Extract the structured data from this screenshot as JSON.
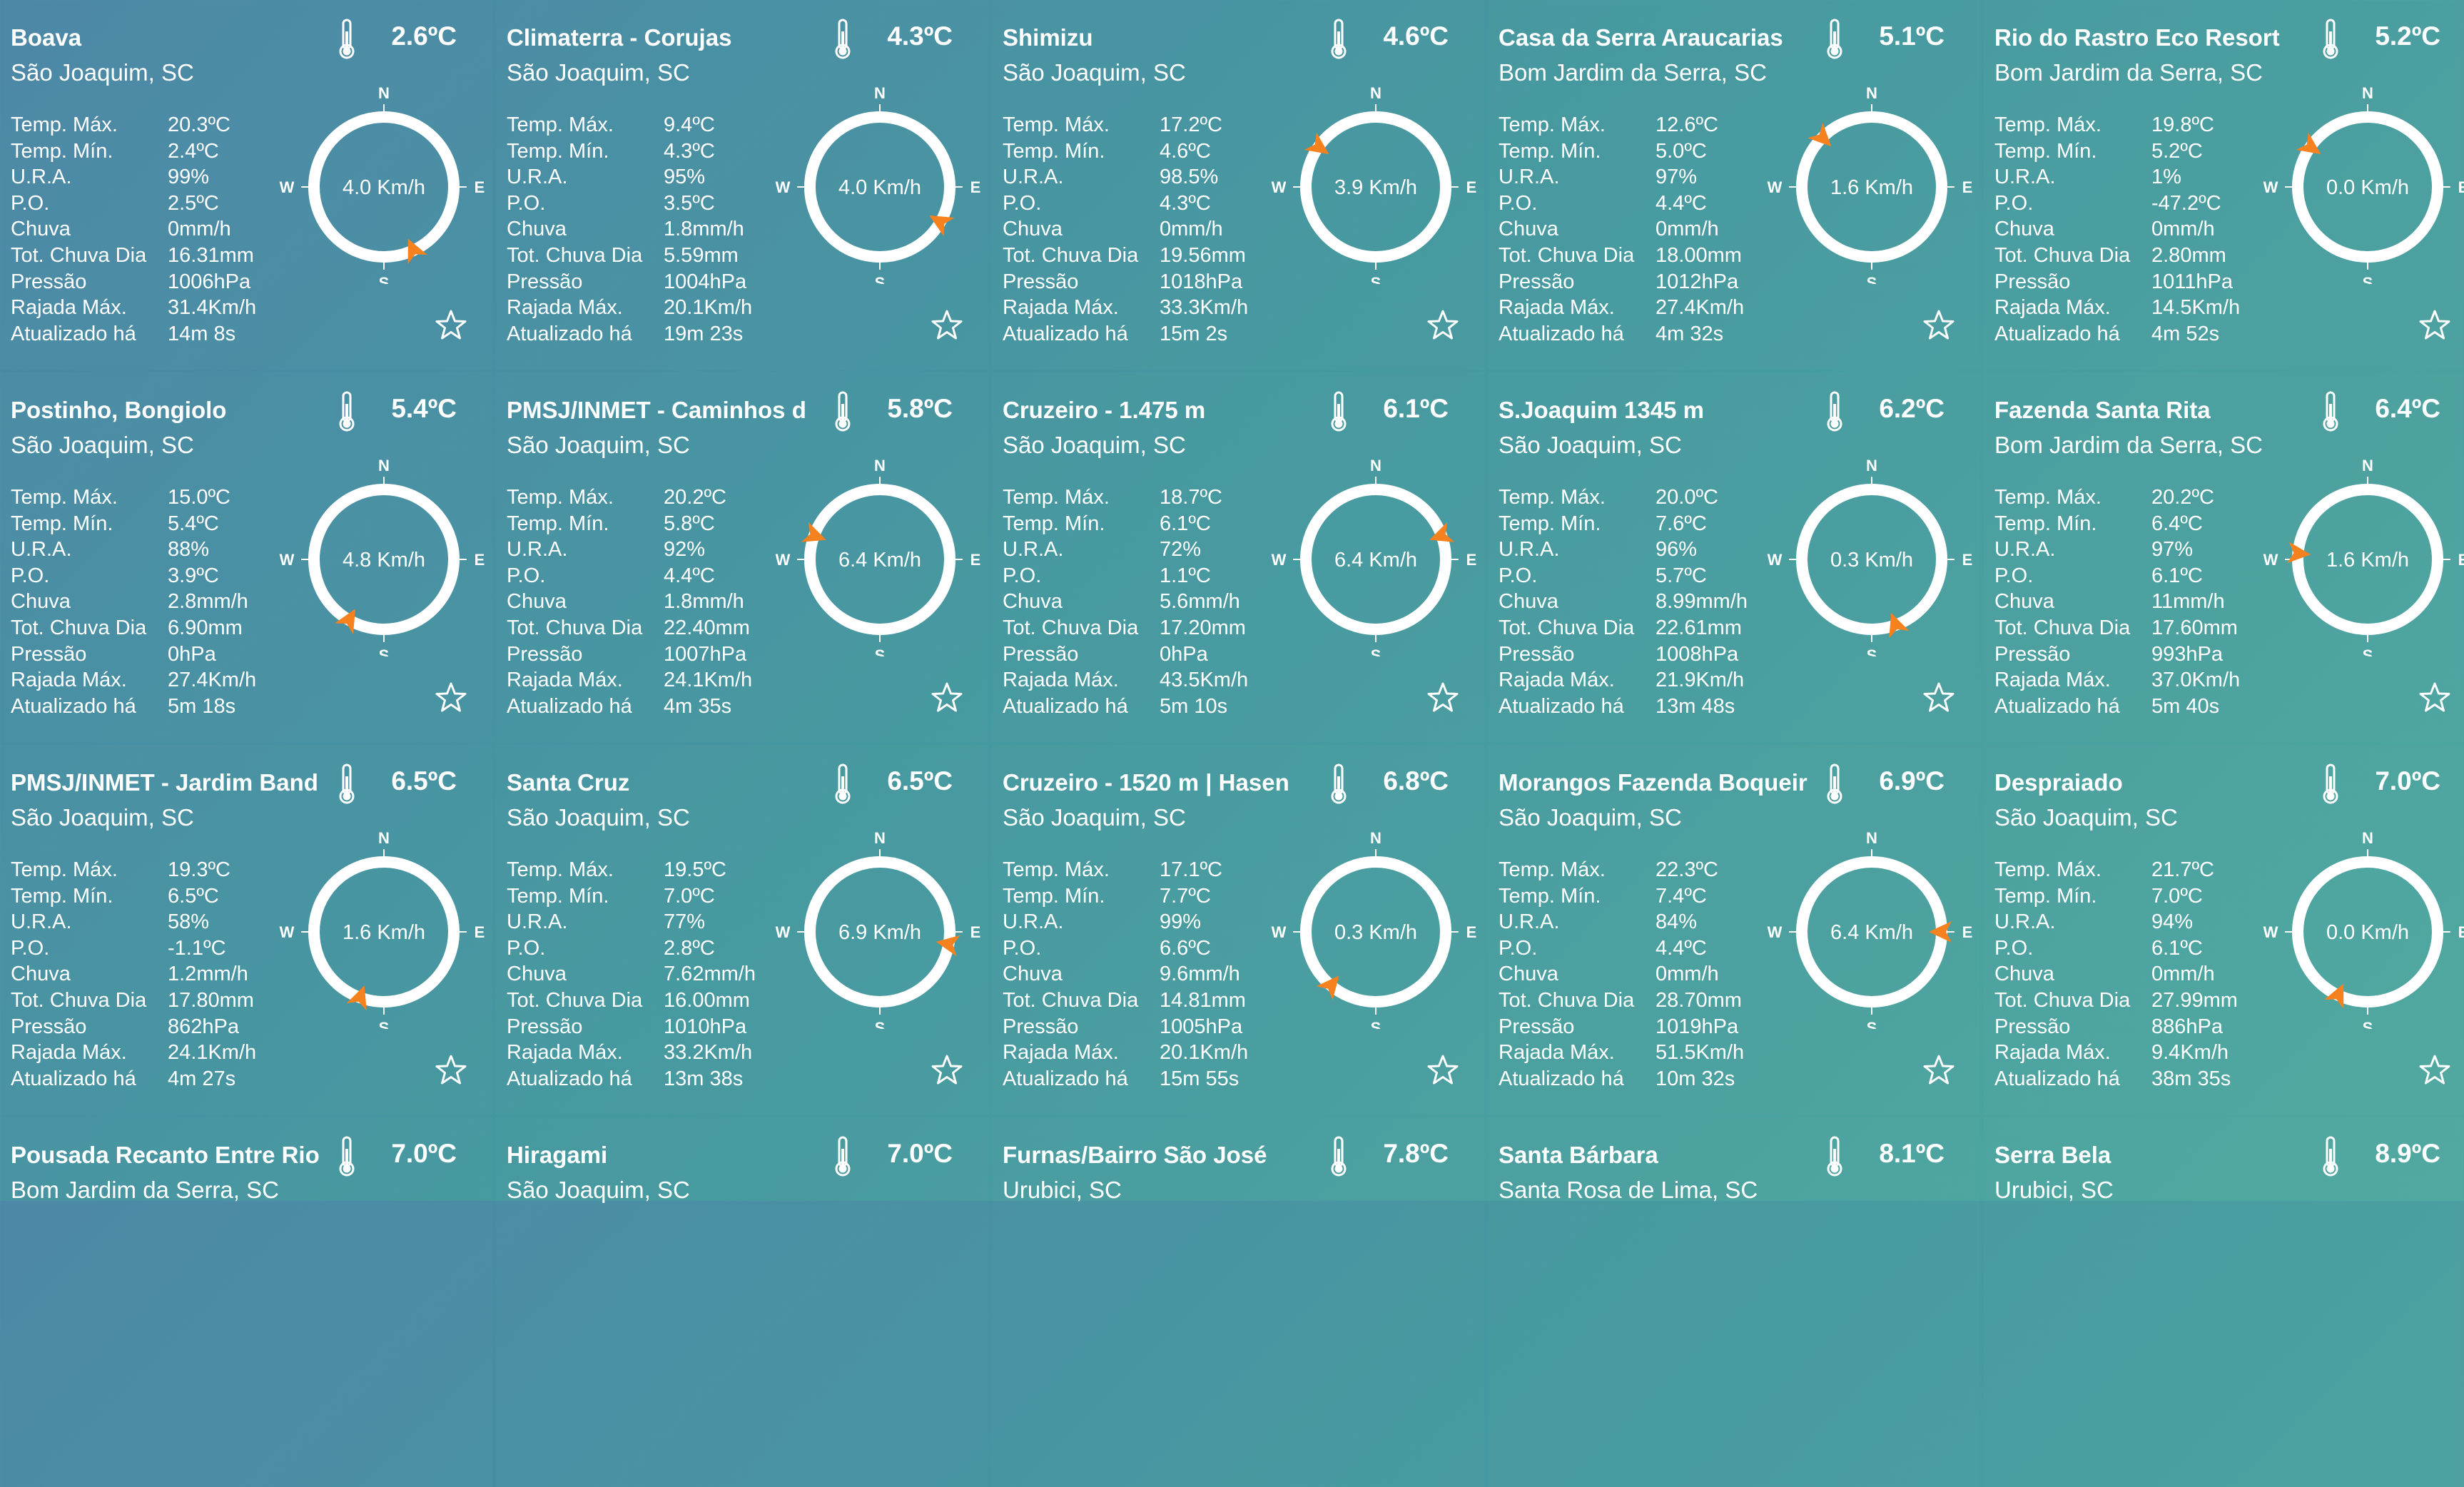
{
  "labels": {
    "tmax": "Temp. Máx.",
    "tmin": "Temp. Mín.",
    "ura": "U.R.A.",
    "po": "P.O.",
    "chuva": "Chuva",
    "totchuva": "Tot. Chuva Dia",
    "pressao": "Pressão",
    "rajada": "Rajada Máx.",
    "atualizado": "Atualizado há"
  },
  "compass_labels": {
    "n": "N",
    "s": "S",
    "e": "E",
    "w": "W"
  },
  "colors": {
    "arrow": "#f5821f",
    "ring": "#ffffff"
  },
  "icons": {
    "thermometer": "thermometer-icon",
    "favorite": "star-outline-icon"
  },
  "stations": [
    {
      "name": "Boava",
      "city": "São Joaquim, SC",
      "temp": "2.6ºC",
      "tmax": "20.3ºC",
      "tmin": "2.4ºC",
      "ura": "99%",
      "po": "2.5ºC",
      "chuva": "0mm/h",
      "totchuva": "16.31mm",
      "pressao": "1006hPa",
      "rajada": "31.4Km/h",
      "atualizado": "14m 8s",
      "wind": "4.0 Km/h",
      "wind_dir_deg": 155
    },
    {
      "name": "Climaterra - Corujas",
      "city": "São Joaquim, SC",
      "temp": "4.3ºC",
      "tmax": "9.4ºC",
      "tmin": "4.3ºC",
      "ura": "95%",
      "po": "3.5ºC",
      "chuva": "1.8mm/h",
      "totchuva": "5.59mm",
      "pressao": "1004hPa",
      "rajada": "20.1Km/h",
      "atualizado": "19m 23s",
      "wind": "4.0 Km/h",
      "wind_dir_deg": 120
    },
    {
      "name": "Shimizu",
      "city": "São Joaquim, SC",
      "temp": "4.6ºC",
      "tmax": "17.2ºC",
      "tmin": "4.6ºC",
      "ura": "98.5%",
      "po": "4.3ºC",
      "chuva": "0mm/h",
      "totchuva": "19.56mm",
      "pressao": "1018hPa",
      "rajada": "33.3Km/h",
      "atualizado": "15m 2s",
      "wind": "3.9 Km/h",
      "wind_dir_deg": 305
    },
    {
      "name": "Casa da Serra Araucarias",
      "city": "Bom Jardim da Serra, SC",
      "temp": "5.1ºC",
      "tmax": "12.6ºC",
      "tmin": "5.0ºC",
      "ura": "97%",
      "po": "4.4ºC",
      "chuva": "0mm/h",
      "totchuva": "18.00mm",
      "pressao": "1012hPa",
      "rajada": "27.4Km/h",
      "atualizado": "4m 32s",
      "wind": "1.6 Km/h",
      "wind_dir_deg": 315
    },
    {
      "name": "Rio do Rastro Eco Resort",
      "city": "Bom Jardim da Serra, SC",
      "temp": "5.2ºC",
      "tmax": "19.8ºC",
      "tmin": "5.2ºC",
      "ura": "1%",
      "po": "-47.2ºC",
      "chuva": "0mm/h",
      "totchuva": "2.80mm",
      "pressao": "1011hPa",
      "rajada": "14.5Km/h",
      "atualizado": "4m 52s",
      "wind": "0.0 Km/h",
      "wind_dir_deg": 305
    },
    {
      "name": "Postinho, Bongiolo",
      "city": "São Joaquim, SC",
      "temp": "5.4ºC",
      "tmax": "15.0ºC",
      "tmin": "5.4ºC",
      "ura": "88%",
      "po": "3.9ºC",
      "chuva": "2.8mm/h",
      "totchuva": "6.90mm",
      "pressao": "0hPa",
      "rajada": "27.4Km/h",
      "atualizado": "5m 18s",
      "wind": "4.8 Km/h",
      "wind_dir_deg": 210
    },
    {
      "name": "PMSJ/INMET - Caminhos d",
      "city": "São Joaquim, SC",
      "temp": "5.8ºC",
      "tmax": "20.2ºC",
      "tmin": "5.8ºC",
      "ura": "92%",
      "po": "4.4ºC",
      "chuva": "1.8mm/h",
      "totchuva": "22.40mm",
      "pressao": "1007hPa",
      "rajada": "24.1Km/h",
      "atualizado": "4m 35s",
      "wind": "6.4 Km/h",
      "wind_dir_deg": 290
    },
    {
      "name": "Cruzeiro - 1.475 m",
      "city": "São Joaquim, SC",
      "temp": "6.1ºC",
      "tmax": "18.7ºC",
      "tmin": "6.1ºC",
      "ura": "72%",
      "po": "1.1ºC",
      "chuva": "5.6mm/h",
      "totchuva": "17.20mm",
      "pressao": "0hPa",
      "rajada": "43.5Km/h",
      "atualizado": "5m 10s",
      "wind": "6.4 Km/h",
      "wind_dir_deg": 70
    },
    {
      "name": "S.Joaquim 1345 m",
      "city": "São Joaquim, SC",
      "temp": "6.2ºC",
      "tmax": "20.0ºC",
      "tmin": "7.6ºC",
      "ura": "96%",
      "po": "5.7ºC",
      "chuva": "8.99mm/h",
      "totchuva": "22.61mm",
      "pressao": "1008hPa",
      "rajada": "21.9Km/h",
      "atualizado": "13m 48s",
      "wind": "0.3 Km/h",
      "wind_dir_deg": 160
    },
    {
      "name": "Fazenda Santa Rita",
      "city": "Bom Jardim da Serra, SC",
      "temp": "6.4ºC",
      "tmax": "20.2ºC",
      "tmin": "6.4ºC",
      "ura": "97%",
      "po": "6.1ºC",
      "chuva": "11mm/h",
      "totchuva": "17.60mm",
      "pressao": "993hPa",
      "rajada": "37.0Km/h",
      "atualizado": "5m 40s",
      "wind": "1.6 Km/h",
      "wind_dir_deg": 275
    },
    {
      "name": "PMSJ/INMET - Jardim Band",
      "city": "São Joaquim, SC",
      "temp": "6.5ºC",
      "tmax": "19.3ºC",
      "tmin": "6.5ºC",
      "ura": "58%",
      "po": "-1.1ºC",
      "chuva": "1.2mm/h",
      "totchuva": "17.80mm",
      "pressao": "862hPa",
      "rajada": "24.1Km/h",
      "atualizado": "4m 27s",
      "wind": "1.6 Km/h",
      "wind_dir_deg": 200
    },
    {
      "name": "Santa Cruz",
      "city": "São Joaquim, SC",
      "temp": "6.5ºC",
      "tmax": "19.5ºC",
      "tmin": "7.0ºC",
      "ura": "77%",
      "po": "2.8ºC",
      "chuva": "7.62mm/h",
      "totchuva": "16.00mm",
      "pressao": "1010hPa",
      "rajada": "33.2Km/h",
      "atualizado": "13m 38s",
      "wind": "6.9 Km/h",
      "wind_dir_deg": 100
    },
    {
      "name": "Cruzeiro - 1520 m | Hasen",
      "city": "São Joaquim, SC",
      "temp": "6.8ºC",
      "tmax": "17.1ºC",
      "tmin": "7.7ºC",
      "ura": "99%",
      "po": "6.6ºC",
      "chuva": "9.6mm/h",
      "totchuva": "14.81mm",
      "pressao": "1005hPa",
      "rajada": "20.1Km/h",
      "atualizado": "15m 55s",
      "wind": "0.3 Km/h",
      "wind_dir_deg": 220
    },
    {
      "name": "Morangos Fazenda Boqueir",
      "city": "São Joaquim, SC",
      "temp": "6.9ºC",
      "tmax": "22.3ºC",
      "tmin": "7.4ºC",
      "ura": "84%",
      "po": "4.4ºC",
      "chuva": "0mm/h",
      "totchuva": "28.70mm",
      "pressao": "1019hPa",
      "rajada": "51.5Km/h",
      "atualizado": "10m 32s",
      "wind": "6.4 Km/h",
      "wind_dir_deg": 90
    },
    {
      "name": "Despraiado",
      "city": "São Joaquim, SC",
      "temp": "7.0ºC",
      "tmax": "21.7ºC",
      "tmin": "7.0ºC",
      "ura": "94%",
      "po": "6.1ºC",
      "chuva": "0mm/h",
      "totchuva": "27.99mm",
      "pressao": "886hPa",
      "rajada": "9.4Km/h",
      "atualizado": "38m 35s",
      "wind": "0.0 Km/h",
      "wind_dir_deg": 205
    },
    {
      "name": "Pousada Recanto Entre Rio",
      "city": "Bom Jardim da Serra, SC",
      "temp": "7.0ºC"
    },
    {
      "name": "Hiragami",
      "city": "São Joaquim, SC",
      "temp": "7.0ºC"
    },
    {
      "name": "Furnas/Bairro São José",
      "city": "Urubici, SC",
      "temp": "7.8ºC"
    },
    {
      "name": "Santa Bárbara",
      "city": "Santa Rosa de Lima, SC",
      "temp": "8.1ºC"
    },
    {
      "name": "Serra Bela",
      "city": "Urubici, SC",
      "temp": "8.9ºC"
    }
  ]
}
